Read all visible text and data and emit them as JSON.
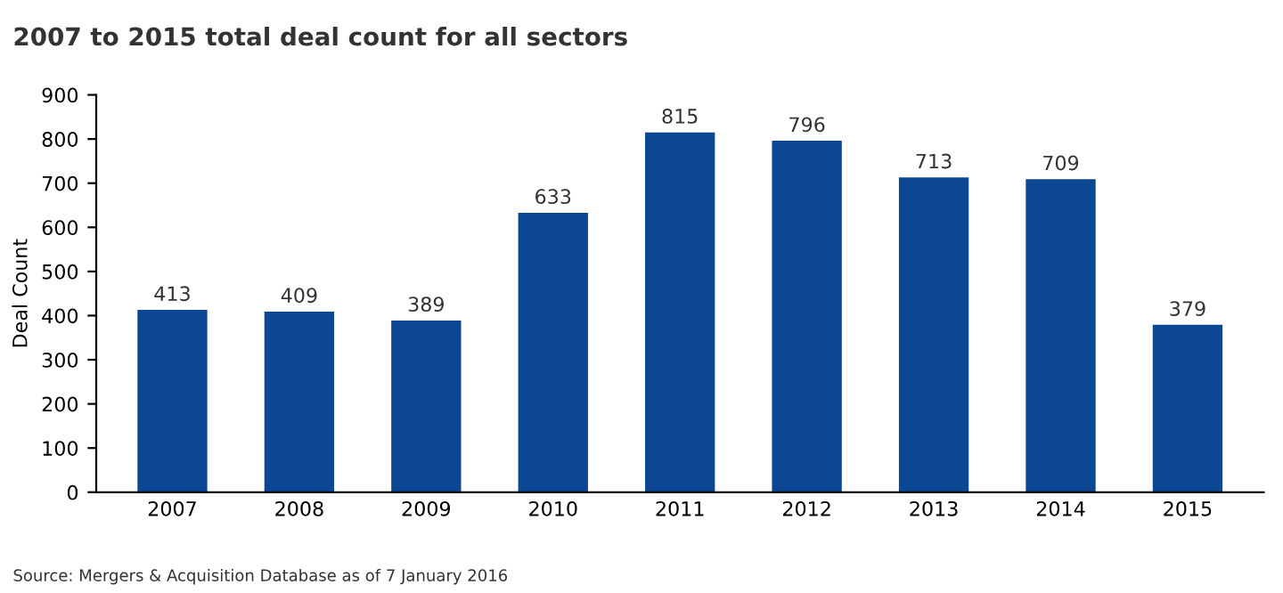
{
  "chart_data": {
    "type": "bar",
    "title": "2007 to 2015 total deal count for all sectors",
    "ylabel": "Deal Count",
    "categories": [
      "2007",
      "2008",
      "2009",
      "2010",
      "2011",
      "2012",
      "2013",
      "2014",
      "2015"
    ],
    "values": [
      413,
      409,
      389,
      633,
      815,
      796,
      713,
      709,
      379
    ],
    "color": "#0b4793",
    "ylim": [
      0,
      900
    ],
    "yticks": [
      0,
      100,
      200,
      300,
      400,
      500,
      600,
      700,
      800,
      900
    ],
    "data_labels": true,
    "grid": false,
    "annotations": [
      "Source: Mergers & Acquisition Database as of 7 January 2016"
    ]
  }
}
